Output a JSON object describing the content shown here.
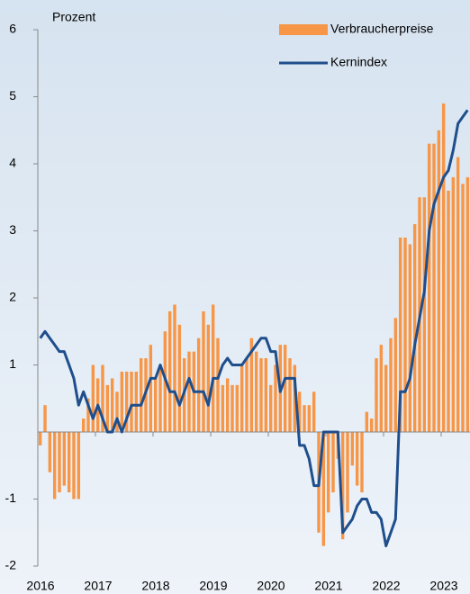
{
  "chart_data": {
    "type": "bar",
    "y_label": "Prozent",
    "categories": [
      "2016",
      null,
      null,
      null,
      null,
      null,
      null,
      null,
      null,
      null,
      null,
      null,
      "2017",
      null,
      null,
      null,
      null,
      null,
      null,
      null,
      null,
      null,
      null,
      null,
      "2018",
      null,
      null,
      null,
      null,
      null,
      null,
      null,
      null,
      null,
      null,
      null,
      "2019",
      null,
      null,
      null,
      null,
      null,
      null,
      null,
      null,
      null,
      null,
      null,
      "2020",
      null,
      null,
      null,
      null,
      null,
      null,
      null,
      null,
      null,
      null,
      null,
      "2021",
      null,
      null,
      null,
      null,
      null,
      null,
      null,
      null,
      null,
      null,
      null,
      "2022",
      null,
      null,
      null,
      null,
      null,
      null,
      null,
      null,
      null,
      null,
      null,
      "2023",
      null,
      null,
      null,
      null,
      null
    ],
    "series": [
      {
        "name": "Verbraucherpreise",
        "type": "bar",
        "color": "#f79646",
        "values": [
          -0.2,
          0.4,
          -0.6,
          -1.0,
          -0.9,
          -0.8,
          -0.9,
          -1.0,
          -1.0,
          0.2,
          0.5,
          1.0,
          0.8,
          1.0,
          0.7,
          0.8,
          0.6,
          0.9,
          0.9,
          0.9,
          0.9,
          1.1,
          1.1,
          1.3,
          0.8,
          1.0,
          1.5,
          1.8,
          1.9,
          1.6,
          1.1,
          1.2,
          1.2,
          1.4,
          1.8,
          1.6,
          1.9,
          1.4,
          0.7,
          0.8,
          0.7,
          0.7,
          1.0,
          1.1,
          1.4,
          1.2,
          1.1,
          1.1,
          0.7,
          1.0,
          1.3,
          1.3,
          1.1,
          1.0,
          0.6,
          0.4,
          0.4,
          0.6,
          -1.5,
          -1.7,
          -1.2,
          -0.9,
          -0.4,
          -1.6,
          -1.2,
          -0.5,
          -0.8,
          -0.9,
          0.3,
          0.2,
          1.1,
          1.3,
          1.0,
          1.4,
          1.7,
          2.9,
          2.9,
          2.8,
          3.1,
          3.5,
          3.5,
          4.3,
          4.3,
          4.5,
          4.9,
          3.6,
          3.8,
          4.1,
          3.7,
          3.8
        ]
      },
      {
        "name": "Kernindex",
        "type": "line",
        "color": "#1f4e8c",
        "values": [
          1.4,
          1.5,
          1.4,
          1.3,
          1.2,
          1.2,
          1.0,
          0.8,
          0.4,
          0.6,
          0.4,
          0.2,
          0.4,
          0.2,
          0.0,
          0.0,
          0.2,
          0.0,
          0.2,
          0.4,
          0.4,
          0.4,
          0.6,
          0.8,
          0.8,
          1.0,
          0.8,
          0.6,
          0.6,
          0.4,
          0.6,
          0.8,
          0.6,
          0.6,
          0.6,
          0.4,
          0.8,
          0.8,
          1.0,
          1.1,
          1.0,
          1.0,
          1.0,
          1.1,
          1.2,
          1.3,
          1.4,
          1.4,
          1.2,
          1.2,
          0.6,
          0.8,
          0.8,
          0.8,
          -0.2,
          -0.2,
          -0.4,
          -0.8,
          -0.8,
          0.0,
          0.0,
          0.0,
          0.0,
          -1.5,
          -1.4,
          -1.3,
          -1.1,
          -1.0,
          -1.0,
          -1.2,
          -1.2,
          -1.3,
          -1.7,
          -1.5,
          -1.3,
          0.6,
          0.6,
          0.8,
          1.3,
          1.7,
          2.1,
          3.0,
          3.4,
          3.6,
          3.8,
          3.9,
          4.2,
          4.6,
          4.7,
          4.8
        ]
      }
    ],
    "ylim": [
      -2,
      6
    ],
    "yticks": [
      6,
      5,
      4,
      3,
      2,
      1,
      -1,
      -2
    ],
    "legend": "top-right"
  }
}
